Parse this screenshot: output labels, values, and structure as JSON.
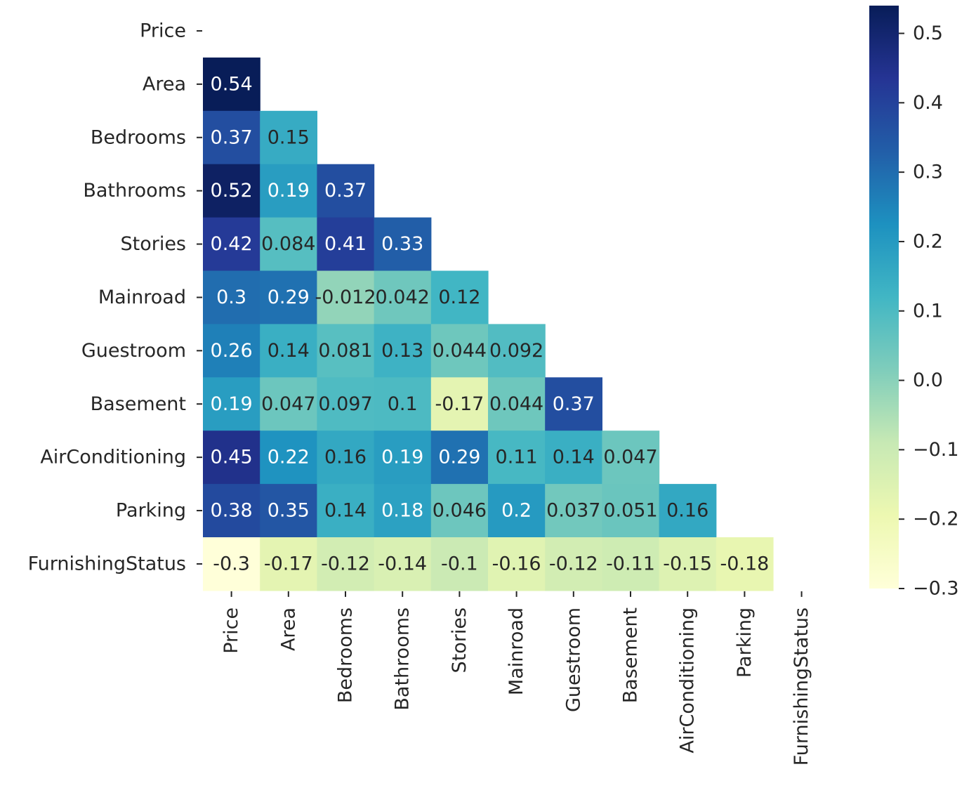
{
  "chart_data": {
    "type": "heatmap",
    "variables": [
      "Price",
      "Area",
      "Bedrooms",
      "Bathrooms",
      "Stories",
      "Mainroad",
      "Guestroom",
      "Basement",
      "AirConditioning",
      "Parking",
      "FurnishingStatus"
    ],
    "mask": "upper-triangle-including-diagonal",
    "lower_triangle": [
      [],
      [
        "0.54"
      ],
      [
        "0.37",
        "0.15"
      ],
      [
        "0.52",
        "0.19",
        "0.37"
      ],
      [
        "0.42",
        "0.084",
        "0.41",
        "0.33"
      ],
      [
        "0.3",
        "0.29",
        "-0.012",
        "0.042",
        "0.12"
      ],
      [
        "0.26",
        "0.14",
        "0.081",
        "0.13",
        "0.044",
        "0.092"
      ],
      [
        "0.19",
        "0.047",
        "0.097",
        "0.1",
        "-0.17",
        "0.044",
        "0.37"
      ],
      [
        "0.45",
        "0.22",
        "0.16",
        "0.19",
        "0.29",
        "0.11",
        "0.14",
        "0.047"
      ],
      [
        "0.38",
        "0.35",
        "0.14",
        "0.18",
        "0.046",
        "0.2",
        "0.037",
        "0.051",
        "0.16"
      ],
      [
        "-0.3",
        "-0.17",
        "-0.12",
        "-0.14",
        "-0.1",
        "-0.16",
        "-0.12",
        "-0.11",
        "-0.15",
        "-0.18"
      ]
    ],
    "colormap": "YlGnBu",
    "colormap_stops": [
      "#ffffd9",
      "#edf8b1",
      "#c7e9b4",
      "#7fcdbb",
      "#41b6c4",
      "#1d91c0",
      "#225ea8",
      "#253494",
      "#081d58"
    ],
    "vmin": -0.3,
    "vmax": 0.54,
    "colorbar": {
      "ticks": [
        "0.5",
        "0.4",
        "0.3",
        "0.2",
        "0.1",
        "0.0",
        "−0.1",
        "−0.2",
        "−0.3"
      ]
    },
    "annotate": true,
    "grid": false,
    "legend": "colorbar-right"
  }
}
